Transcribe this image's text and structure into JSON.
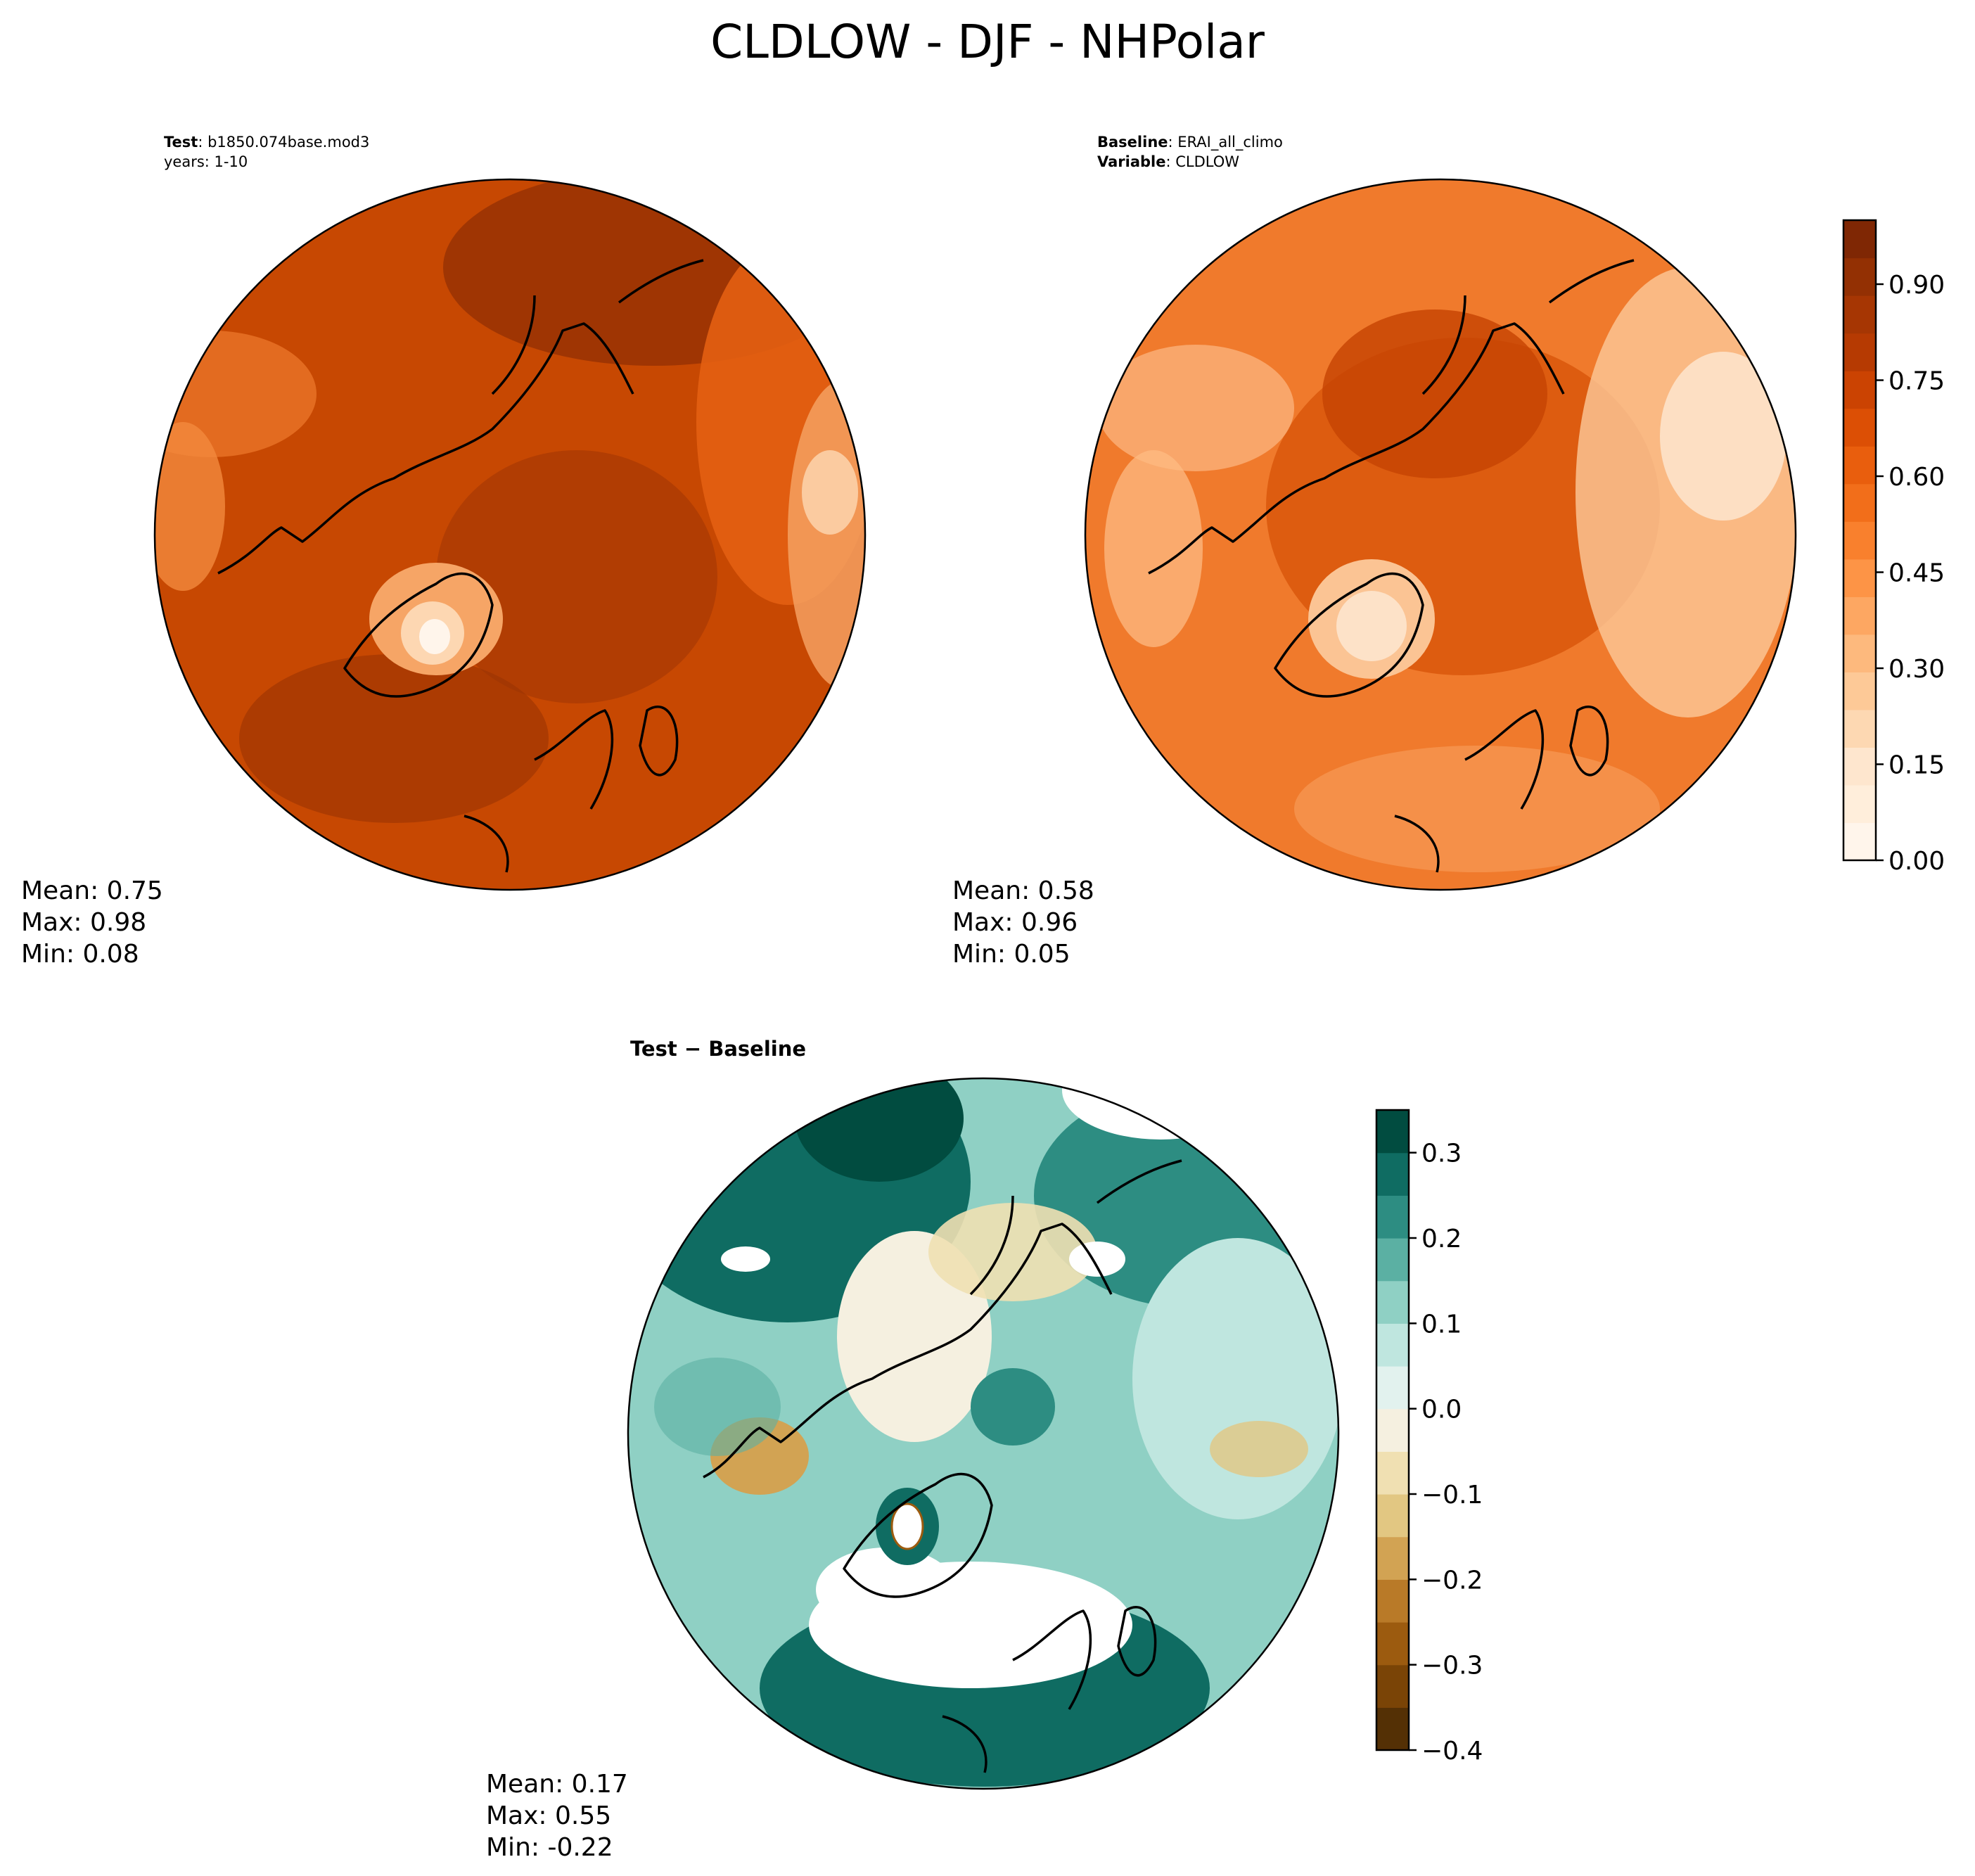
{
  "suptitle": "CLDLOW - DJF - NHPolar",
  "panels": [
    {
      "id": "test",
      "meta_lines": [
        {
          "bold": "Test",
          "text": "b1850.074base.mod3"
        },
        {
          "bold": "",
          "text": "years: 1-10"
        }
      ],
      "stats": {
        "mean": "Mean:  0.75",
        "max": "Max:  0.98",
        "min": "Min:  0.08"
      }
    },
    {
      "id": "baseline",
      "meta_lines": [
        {
          "bold": "Baseline",
          "text": "ERAI_all_climo"
        },
        {
          "bold": "Variable",
          "text": "CLDLOW"
        }
      ],
      "stats": {
        "mean": "Mean:  0.58",
        "max": "Max:  0.96",
        "min": "Min:  0.05"
      }
    },
    {
      "id": "diff",
      "title": "Test − Baseline",
      "stats": {
        "mean": "Mean:  0.17",
        "max": "Max:  0.55",
        "min": "Min: -0.22"
      }
    }
  ],
  "chart_data": [
    {
      "type": "heatmap",
      "title": "Test: b1850.074base.mod3, years: 1-10",
      "projection": "north polar stereographic",
      "mean": 0.75,
      "max": 0.98,
      "min": 0.08,
      "colormap": "Oranges"
    },
    {
      "type": "heatmap",
      "title": "Baseline: ERAI_all_climo, Variable: CLDLOW",
      "projection": "north polar stereographic",
      "mean": 0.58,
      "max": 0.96,
      "min": 0.05,
      "colormap": "Oranges",
      "colorbar": {
        "range": [
          0.0,
          1.0
        ],
        "ticks": [
          0.0,
          0.15,
          0.3,
          0.45,
          0.6,
          0.75,
          0.9
        ],
        "tick_labels": [
          "0.00",
          "0.15",
          "0.30",
          "0.45",
          "0.60",
          "0.75",
          "0.90"
        ],
        "levels": 20,
        "colors": [
          "#fff5eb",
          "#ffeedb",
          "#fee6ce",
          "#fdd8b2",
          "#fdc997",
          "#fdb97d",
          "#fda762",
          "#fd9446",
          "#f9802d",
          "#f26e1a",
          "#e95e0d",
          "#dc4f05",
          "#cb4302",
          "#b63a02",
          "#a63603",
          "#933003",
          "#7f2704"
        ]
      }
    },
    {
      "type": "heatmap",
      "title": "Test − Baseline",
      "projection": "north polar stereographic",
      "mean": 0.17,
      "max": 0.55,
      "min": -0.22,
      "colormap": "BrBG",
      "colorbar": {
        "range": [
          -0.4,
          0.35
        ],
        "ticks": [
          -0.4,
          -0.3,
          -0.2,
          -0.1,
          0.0,
          0.1,
          0.2,
          0.3
        ],
        "tick_labels": [
          "−0.4",
          "−0.3",
          "−0.2",
          "−0.1",
          "0.0",
          "0.1",
          "0.2",
          "0.3"
        ],
        "levels": 15,
        "colors": [
          "#543005",
          "#7a4406",
          "#9c5b0f",
          "#b97a28",
          "#d2a353",
          "#e2c782",
          "#f0e0b2",
          "#f5f0e0",
          "#e2f2ee",
          "#bfe6df",
          "#8fd0c4",
          "#5bb0a3",
          "#2d8d82",
          "#0f6c62",
          "#014c40"
        ]
      }
    }
  ]
}
